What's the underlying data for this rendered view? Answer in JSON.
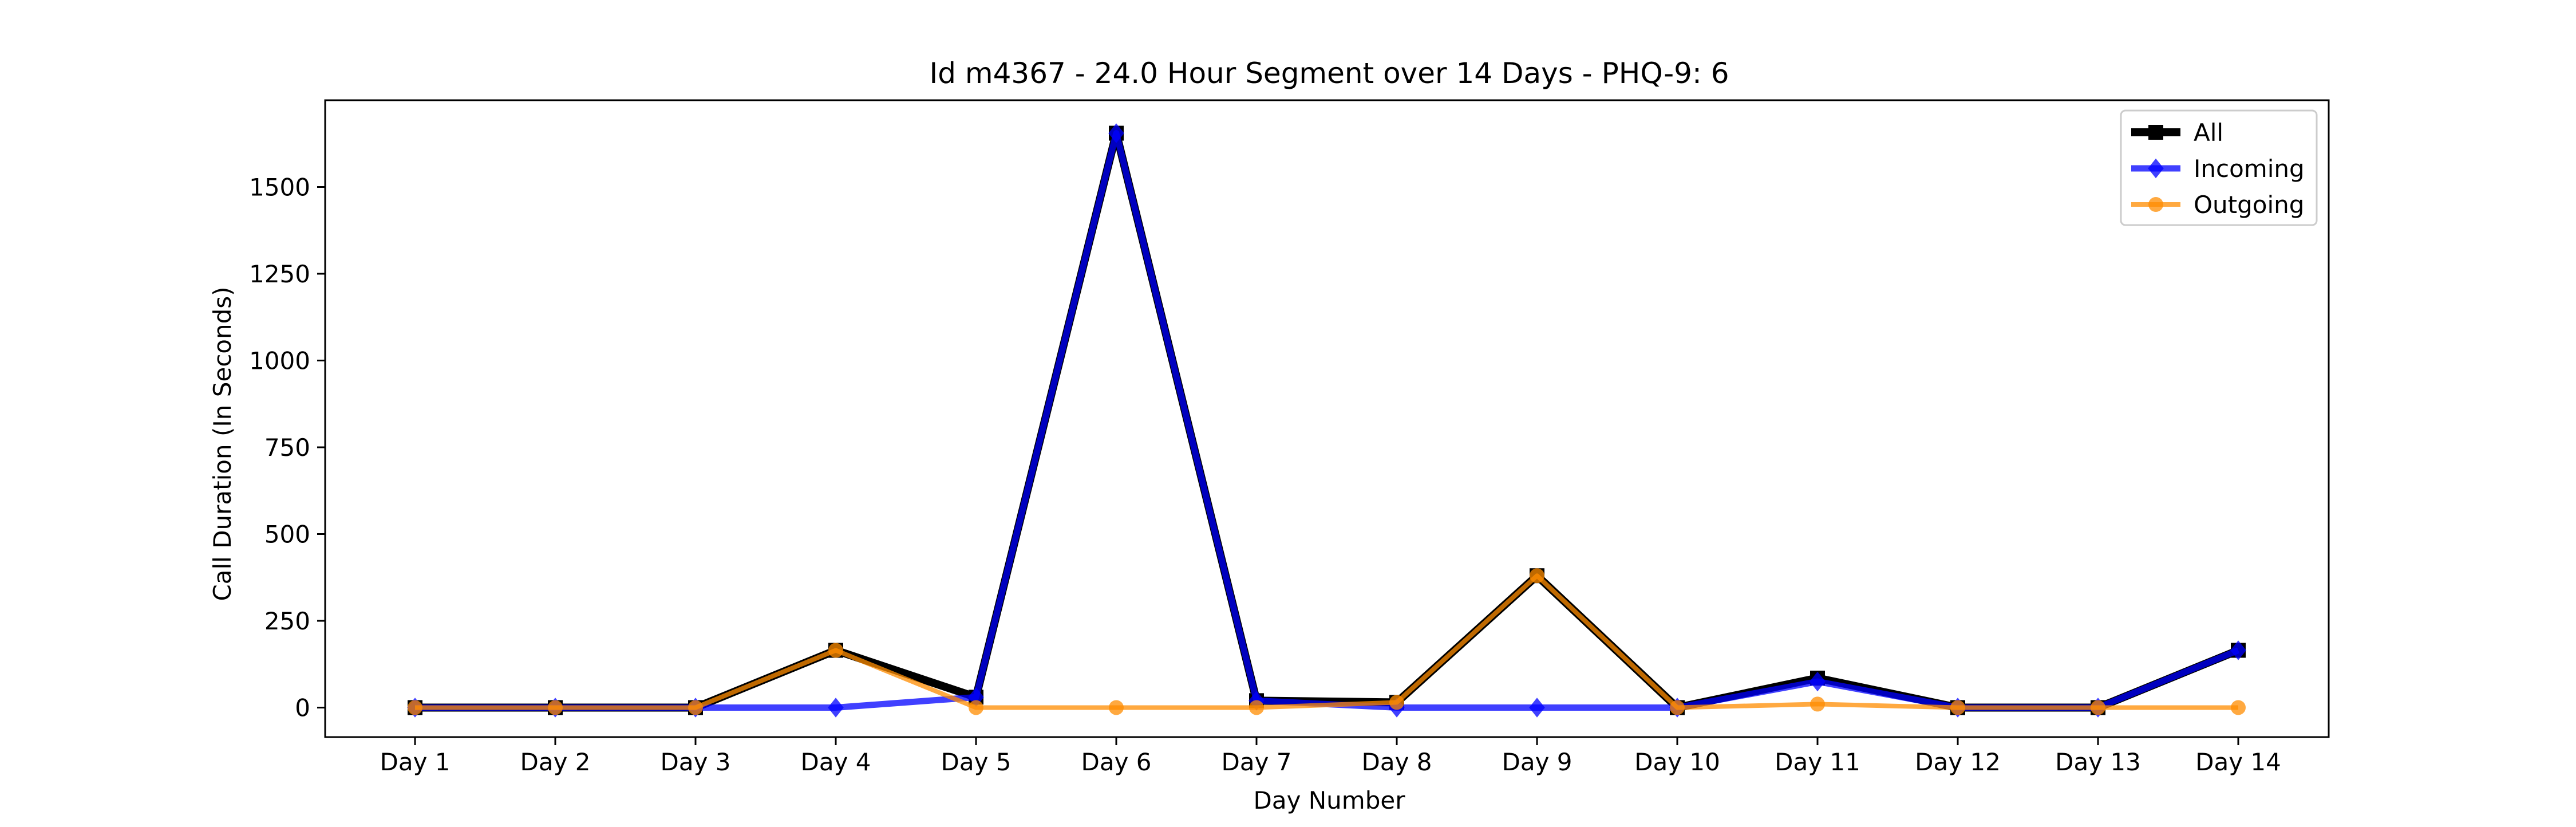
{
  "chart_data": {
    "type": "line",
    "title": "Id m4367 - 24.0 Hour Segment over 14 Days - PHQ-9: 6",
    "xlabel": "Day Number",
    "ylabel": "Call Duration (In Seconds)",
    "categories": [
      "Day 1",
      "Day 2",
      "Day 3",
      "Day 4",
      "Day 5",
      "Day 6",
      "Day 7",
      "Day 8",
      "Day 9",
      "Day 10",
      "Day 11",
      "Day 12",
      "Day 13",
      "Day 14"
    ],
    "ylim": [
      -85,
      1750
    ],
    "yticks": [
      0,
      250,
      500,
      750,
      1000,
      1250,
      1500
    ],
    "grid": false,
    "legend_position": "top-right",
    "series": [
      {
        "name": "All",
        "color": "#000000",
        "marker": "square",
        "values": [
          0,
          0,
          0,
          165,
          30,
          1655,
          20,
          15,
          380,
          0,
          85,
          0,
          0,
          165
        ]
      },
      {
        "name": "Incoming",
        "color": "#0000ff",
        "marker": "diamond",
        "values": [
          0,
          0,
          0,
          0,
          30,
          1655,
          20,
          0,
          0,
          0,
          75,
          0,
          0,
          165
        ]
      },
      {
        "name": "Outgoing",
        "color": "#ff8c00",
        "marker": "circle",
        "values": [
          0,
          0,
          0,
          165,
          0,
          0,
          0,
          15,
          380,
          0,
          10,
          0,
          0,
          0
        ]
      }
    ]
  }
}
